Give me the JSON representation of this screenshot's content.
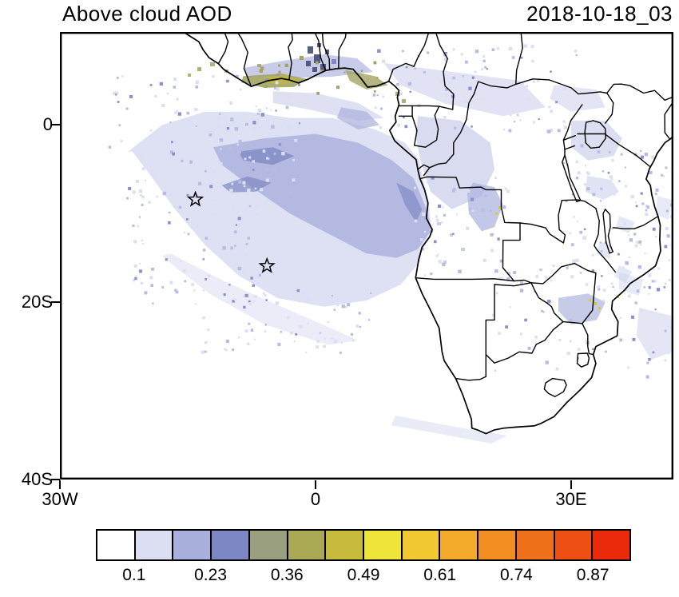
{
  "title": "Above cloud AOD",
  "timestamp": "2018-10-18_03",
  "colorbar": {
    "tick_labels": [
      "0.1",
      "0.23",
      "0.36",
      "0.49",
      "0.61",
      "0.74",
      "0.87"
    ],
    "colors": [
      "#ffffff",
      "#dcdef2",
      "#a9afdc",
      "#7d87c3",
      "#9aa07f",
      "#a8a855",
      "#c6bb3c",
      "#efe43a",
      "#f2c932",
      "#f3a92a",
      "#f28d22",
      "#ef711b",
      "#ee4f12",
      "#eb2a0b"
    ]
  },
  "chart_data": {
    "type": "heatmap",
    "title": "Above cloud AOD",
    "timestamp_label": "2018-10-18_03",
    "projection": "cylindrical lat-lon map of Africa and the southeast Atlantic",
    "lon_range": [
      -30,
      42
    ],
    "lat_range": [
      10.5,
      -40
    ],
    "x_ticks": [
      {
        "label": "30W",
        "lon": -30
      },
      {
        "label": "0",
        "lon": 0
      },
      {
        "label": "30E",
        "lon": 30
      }
    ],
    "y_ticks": [
      {
        "label": "0",
        "lat": 0
      },
      {
        "label": "20S",
        "lat": -20
      },
      {
        "label": "40S",
        "lat": -40
      }
    ],
    "colorbar_boundary_labels": [
      0.1,
      0.23,
      0.36,
      0.49,
      0.61,
      0.74,
      0.87
    ],
    "n_color_bins": 14,
    "markers": [
      {
        "type": "open-star",
        "lon": -14.1,
        "lat": -8.4
      },
      {
        "type": "open-star",
        "lon": -5.7,
        "lat": -15.9
      }
    ],
    "regions": [
      {
        "area": "southeast Atlantic off Gabon/Congo/Angola coast",
        "aod_range": [
          0.1,
          0.36
        ],
        "description": "broad above-cloud aerosol plume; mostly 0.1-0.23 with a 0.23-0.36 core between the equator and 15S"
      },
      {
        "area": "Gulf of Guinea coast (Cote d'Ivoire, Ghana, Togo, Benin, Nigeria)",
        "aod_range": [
          0.3,
          0.55
        ],
        "description": "olive/yellow patches of higher AOD hugging the coastline with dense dark speckle over Ghana/Togo"
      },
      {
        "area": "central Africa (Congo basin, CAR, DRC interior)",
        "aod_range": [
          0.05,
          0.23
        ],
        "description": "scattered light lavender AOD patches"
      },
      {
        "area": "East Africa (Lake Victoria region, Tanzania, Mozambique)",
        "aod_range": [
          0.05,
          0.2
        ],
        "description": "speckled light AOD"
      },
      {
        "area": "Zimbabwe/Mozambique border",
        "aod_range": [
          0.1,
          0.45
        ],
        "description": "small blue patch with isolated yellow specks near 32E, 20S"
      },
      {
        "area": "South Africa interior and Southern Ocean",
        "aod_range": [
          0,
          0.1
        ],
        "description": "mostly clear (white)"
      }
    ],
    "legend_position": "bottom horizontal colorbar",
    "grid": false
  }
}
